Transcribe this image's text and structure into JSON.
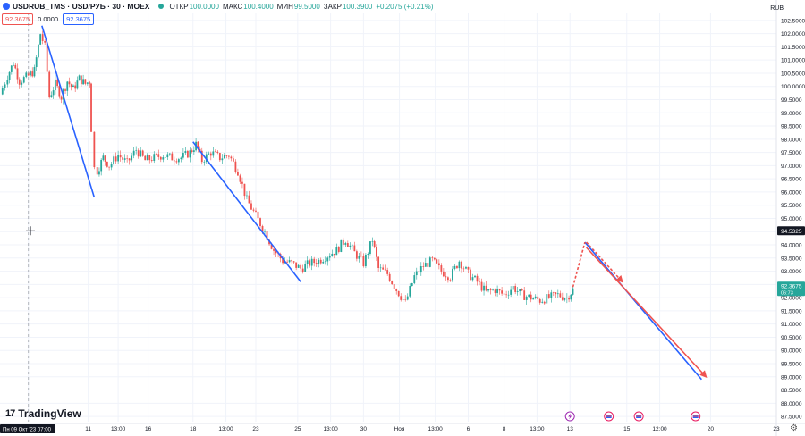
{
  "header": {
    "symbol": "USDRUB_TMS · USD/РУБ · 30 · MOEX",
    "open_label": "ОТКР",
    "open_value": "100.0000",
    "high_label": "МАКС",
    "high_value": "100.4000",
    "low_label": "МИН",
    "low_value": "99.5000",
    "close_label": "ЗАКР",
    "close_value": "100.3900",
    "change_value": "+0.2075 (+0.21%)",
    "sell_price": "92.3675",
    "spread": "0.0000",
    "buy_price": "92.3675",
    "currency": "RUB"
  },
  "branding": {
    "name": "TradingView"
  },
  "colors": {
    "up": "#26a69a",
    "down": "#ef5350",
    "blue_line": "#2962ff",
    "red_line": "#ef5350"
  },
  "chart_data": {
    "type": "candlestick",
    "y_ticks": [
      "102.5000",
      "102.0000",
      "101.5000",
      "101.0000",
      "100.5000",
      "100.0000",
      "99.5000",
      "99.0000",
      "98.5000",
      "98.0000",
      "97.5000",
      "97.0000",
      "96.5000",
      "96.0000",
      "95.5000",
      "95.0000",
      "94.5000",
      "94.0000",
      "93.5000",
      "93.0000",
      "92.5000",
      "92.0000",
      "91.5000",
      "91.0000",
      "90.5000",
      "90.0000",
      "89.5000",
      "89.0000",
      "88.5000",
      "88.0000",
      "87.5000"
    ],
    "ylim": [
      87.3,
      102.8
    ],
    "x_labels": [
      {
        "label": "Пн 09 Окт '23 07:00",
        "pos": 0.0
      },
      {
        "label": "11",
        "pos": 2.0
      },
      {
        "label": "13:00",
        "pos": 3.0
      },
      {
        "label": "16",
        "pos": 4.0
      },
      {
        "label": "18",
        "pos": 5.5
      },
      {
        "label": "13:00",
        "pos": 6.6
      },
      {
        "label": "23",
        "pos": 7.6
      },
      {
        "label": "25",
        "pos": 9.0
      },
      {
        "label": "13:00",
        "pos": 10.1
      },
      {
        "label": "30",
        "pos": 11.2
      },
      {
        "label": "Ноя",
        "pos": 12.4
      },
      {
        "label": "13:00",
        "pos": 13.6
      },
      {
        "label": "6",
        "pos": 14.7
      },
      {
        "label": "8",
        "pos": 15.9
      },
      {
        "label": "13:00",
        "pos": 17.0
      },
      {
        "label": "13",
        "pos": 18.1
      },
      {
        "label": "15",
        "pos": 20.0
      },
      {
        "label": "12:00",
        "pos": 21.1
      },
      {
        "label": "20",
        "pos": 22.8
      },
      {
        "label": "23",
        "pos": 25.0
      }
    ],
    "xlim": [
      -0.95,
      25.0
    ],
    "price_path": [
      [
        -0.95,
        99.7
      ],
      [
        -0.7,
        100.4
      ],
      [
        -0.5,
        100.9
      ],
      [
        -0.3,
        100.2
      ],
      [
        0.0,
        100.4
      ],
      [
        0.2,
        100.6
      ],
      [
        0.4,
        102.0
      ],
      [
        0.55,
        101.5
      ],
      [
        0.7,
        99.6
      ],
      [
        0.9,
        100.1
      ],
      [
        1.1,
        99.6
      ],
      [
        1.3,
        100.2
      ],
      [
        1.5,
        99.9
      ],
      [
        1.7,
        100.3
      ],
      [
        1.9,
        100.1
      ],
      [
        2.05,
        100.2
      ],
      [
        2.1,
        98.4
      ],
      [
        2.2,
        96.9
      ],
      [
        2.3,
        96.8
      ],
      [
        2.5,
        97.3
      ],
      [
        2.7,
        97.0
      ],
      [
        3.0,
        97.4
      ],
      [
        3.3,
        97.1
      ],
      [
        3.6,
        97.6
      ],
      [
        3.9,
        97.2
      ],
      [
        4.2,
        97.3
      ],
      [
        4.5,
        97.4
      ],
      [
        4.8,
        97.3
      ],
      [
        5.1,
        97.3
      ],
      [
        5.4,
        97.5
      ],
      [
        5.6,
        97.8
      ],
      [
        5.8,
        97.2
      ],
      [
        6.1,
        97.5
      ],
      [
        6.4,
        97.3
      ],
      [
        6.7,
        97.4
      ],
      [
        7.0,
        96.8
      ],
      [
        7.3,
        95.7
      ],
      [
        7.6,
        95.1
      ],
      [
        7.9,
        94.5
      ],
      [
        8.2,
        93.8
      ],
      [
        8.5,
        93.4
      ],
      [
        8.8,
        93.3
      ],
      [
        9.1,
        93.1
      ],
      [
        9.4,
        93.3
      ],
      [
        9.7,
        93.4
      ],
      [
        10.0,
        93.6
      ],
      [
        10.3,
        93.8
      ],
      [
        10.6,
        94.2
      ],
      [
        10.9,
        93.7
      ],
      [
        11.2,
        93.3
      ],
      [
        11.5,
        94.2
      ],
      [
        11.7,
        93.1
      ],
      [
        12.0,
        92.9
      ],
      [
        12.3,
        92.3
      ],
      [
        12.6,
        91.8
      ],
      [
        12.9,
        92.8
      ],
      [
        13.2,
        93.2
      ],
      [
        13.5,
        93.4
      ],
      [
        13.8,
        93.0
      ],
      [
        14.1,
        92.8
      ],
      [
        14.4,
        93.4
      ],
      [
        14.7,
        92.9
      ],
      [
        15.0,
        92.6
      ],
      [
        15.3,
        92.2
      ],
      [
        15.6,
        92.3
      ],
      [
        15.9,
        92.1
      ],
      [
        16.2,
        92.4
      ],
      [
        16.5,
        92.1
      ],
      [
        16.8,
        92.0
      ],
      [
        17.1,
        91.9
      ],
      [
        17.4,
        92.0
      ],
      [
        17.7,
        92.1
      ],
      [
        18.0,
        92.0
      ],
      [
        18.2,
        92.3
      ]
    ],
    "current_price": "92.3675",
    "current_price_sub": "06:73",
    "crosshair_price": "94.5325",
    "crosshair_x": 0.0,
    "drawings": [
      {
        "type": "line",
        "color": "#2962ff",
        "from": [
          0.45,
          102.3
        ],
        "to": [
          2.2,
          95.8
        ]
      },
      {
        "type": "line",
        "color": "#2962ff",
        "from": [
          5.5,
          97.9
        ],
        "to": [
          9.1,
          92.6
        ]
      },
      {
        "type": "line",
        "color": "#2962ff",
        "from": [
          18.6,
          94.1
        ],
        "to": [
          22.5,
          88.9
        ]
      },
      {
        "type": "arrow",
        "color": "#ef5350",
        "from": [
          18.65,
          93.9
        ],
        "to": [
          22.65,
          89.0
        ]
      },
      {
        "type": "dashed",
        "color": "#ef5350",
        "from": [
          18.2,
          92.4
        ],
        "to": [
          18.6,
          94.1
        ]
      },
      {
        "type": "dashed-arrow",
        "color": "#ef5350",
        "from": [
          18.65,
          94.1
        ],
        "to": [
          19.85,
          92.6
        ]
      }
    ],
    "event_markers": [
      {
        "kind": "lightning",
        "pos": 18.1
      },
      {
        "kind": "flag",
        "pos": 19.4
      },
      {
        "kind": "flag",
        "pos": 20.4
      },
      {
        "kind": "flag",
        "pos": 22.3
      }
    ]
  }
}
